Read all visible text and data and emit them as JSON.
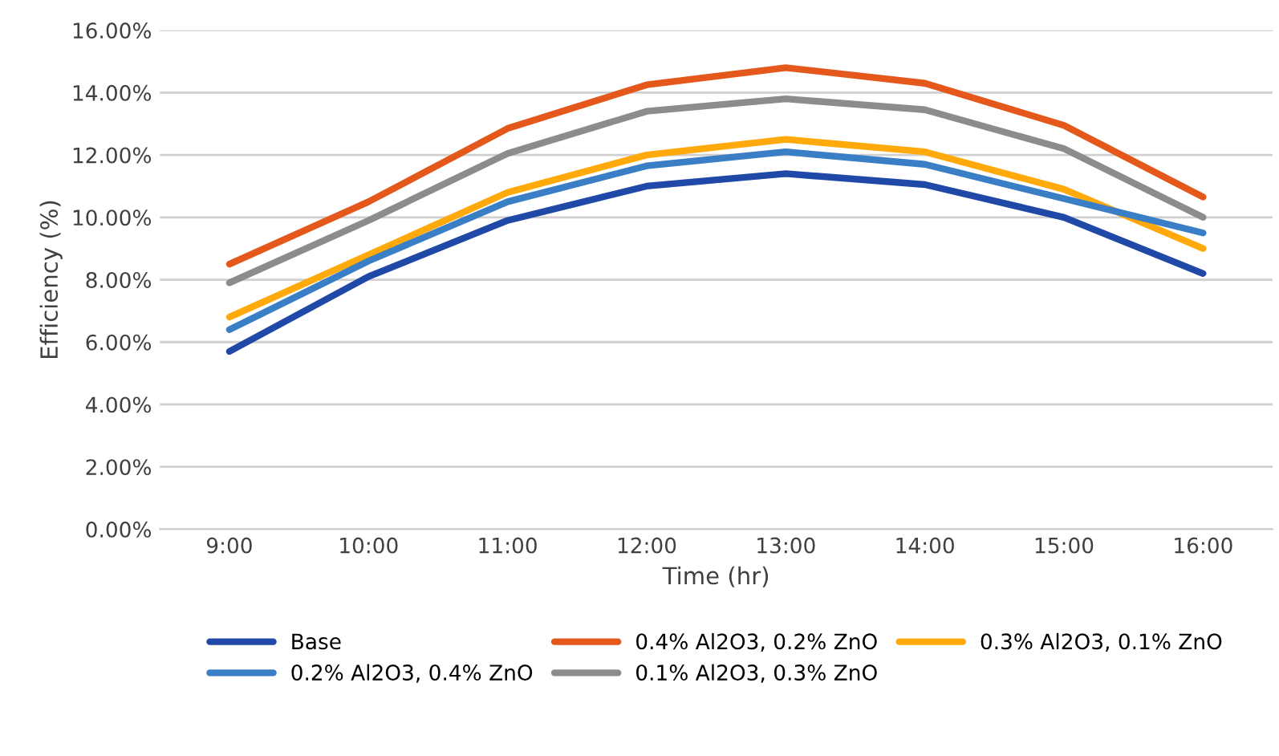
{
  "chart_data": {
    "type": "line",
    "xlabel": "Time (hr)",
    "ylabel": "Efficiency (%)",
    "categories": [
      "9:00",
      "10:00",
      "11:00",
      "12:00",
      "13:00",
      "14:00",
      "15:00",
      "16:00"
    ],
    "series": [
      {
        "name": "Base",
        "color": "#2048a6",
        "values": [
          5.7,
          8.1,
          9.9,
          11.0,
          11.4,
          11.05,
          10.0,
          8.2
        ]
      },
      {
        "name": "0.4% Al2O3, 0.2% ZnO",
        "color": "#e4581c",
        "values": [
          8.5,
          10.5,
          12.85,
          14.25,
          14.8,
          14.3,
          12.95,
          10.65
        ]
      },
      {
        "name": "0.3% Al2O3, 0.1% ZnO",
        "color": "#ffa90a",
        "values": [
          6.8,
          8.8,
          10.8,
          12.0,
          12.5,
          12.1,
          10.9,
          9.0
        ]
      },
      {
        "name": "0.2% Al2O3, 0.4% ZnO",
        "color": "#3a7ec6",
        "values": [
          6.4,
          8.6,
          10.5,
          11.65,
          12.1,
          11.7,
          10.6,
          9.5
        ]
      },
      {
        "name": "0.1% Al2O3, 0.3% ZnO",
        "color": "#8c8c8c",
        "values": [
          7.9,
          9.9,
          12.05,
          13.4,
          13.8,
          13.45,
          12.2,
          10.0
        ]
      }
    ],
    "ylim": [
      0,
      16
    ],
    "yticks": [
      {
        "value": 0,
        "label": "0.00%"
      },
      {
        "value": 2,
        "label": "2.00%"
      },
      {
        "value": 4,
        "label": "4.00%"
      },
      {
        "value": 6,
        "label": "6.00%"
      },
      {
        "value": 8,
        "label": "8.00%"
      },
      {
        "value": 10,
        "label": "10.00%"
      },
      {
        "value": 12,
        "label": "12.00%"
      },
      {
        "value": 14,
        "label": "14.00%"
      },
      {
        "value": 16,
        "label": "16.00%"
      }
    ],
    "grid": "y",
    "legend": "bottom",
    "marker": "none",
    "line_style": "solid"
  }
}
